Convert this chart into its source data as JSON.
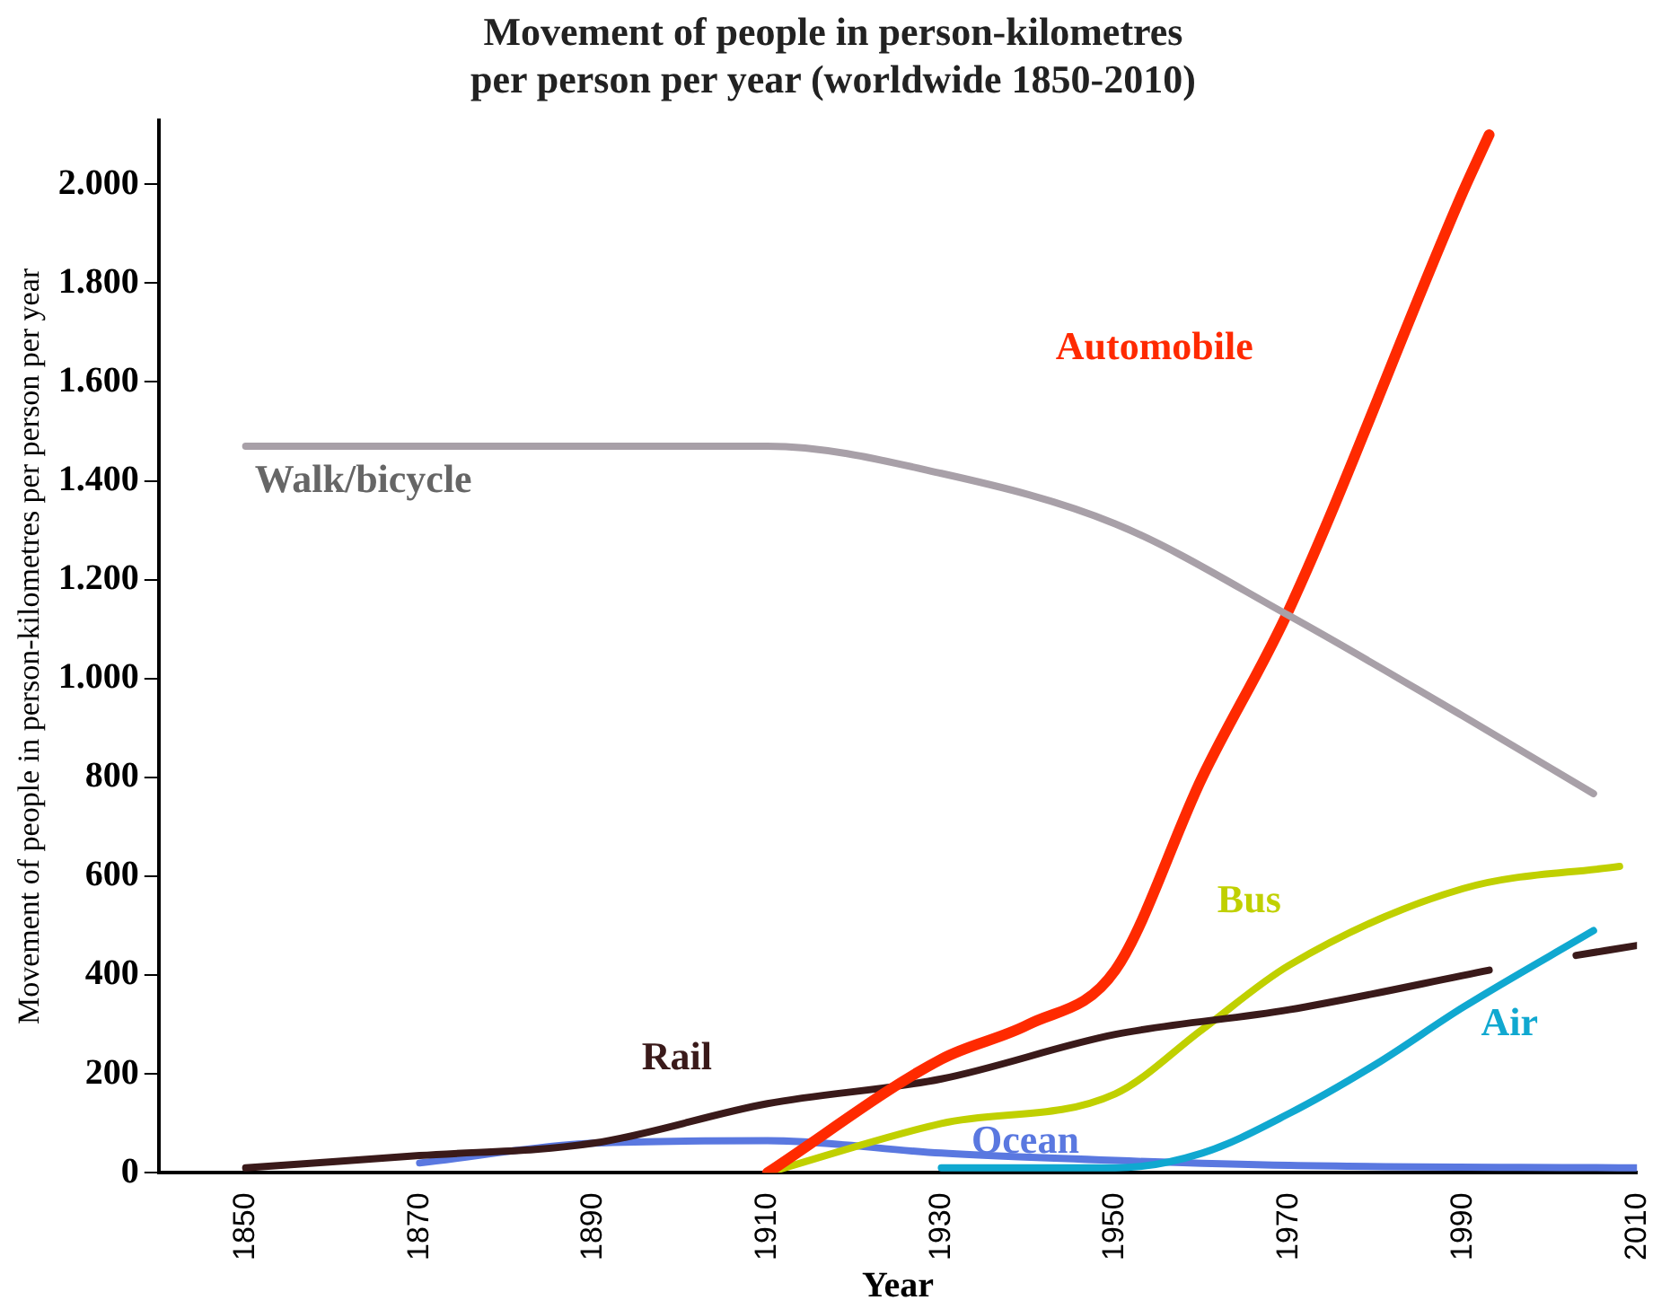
{
  "chart_data": {
    "type": "line",
    "title": "Movement of people in person-kilometres\nper person per year (worldwide 1850-2010)",
    "xlabel": "Year",
    "ylabel": "Movement of people in person-kilometres per person per year",
    "xlim": [
      1840,
      2010
    ],
    "xticks": [
      1850,
      1870,
      1890,
      1910,
      1930,
      1950,
      1970,
      1990,
      2010
    ],
    "ylim": [
      0,
      2130
    ],
    "yticks": [
      0,
      200,
      400,
      600,
      800,
      {
        "value": 1000,
        "label": "1.000"
      },
      {
        "value": 1200,
        "label": "1.200"
      },
      {
        "value": 1400,
        "label": "1.400"
      },
      {
        "value": 1600,
        "label": "1.600"
      },
      {
        "value": 1800,
        "label": "1.800"
      },
      {
        "value": 2000,
        "label": "2.000"
      }
    ],
    "grid": false,
    "legend": false,
    "marker": "none",
    "line_style": "solid",
    "series": [
      {
        "name": "Walk/bicycle",
        "color": "#a8a0a8",
        "x": [
          1850,
          1870,
          1890,
          1910,
          1930,
          1950,
          1970,
          1990,
          2005
        ],
        "values": [
          1470,
          1470,
          1470,
          1470,
          1415,
          1313,
          1127,
          924,
          767
        ]
      },
      {
        "name": "Automobile",
        "color": "#ff2a00",
        "x": [
          1910,
          1930,
          1940,
          1950,
          1960,
          1970,
          1990,
          1993
        ],
        "values": [
          0,
          230,
          300,
          410,
          800,
          1140,
          1985,
          2100
        ]
      },
      {
        "name": "Rail",
        "color": "#3a1a1a",
        "x": [
          1850,
          1870,
          1890,
          1910,
          1930,
          1950,
          1970,
          1993,
          1998,
          2003,
          2010
        ],
        "values": [
          10,
          35,
          60,
          140,
          190,
          280,
          330,
          410,
          null,
          440,
          460
        ]
      },
      {
        "name": "Bus",
        "color": "#c0d000",
        "x": [
          1910,
          1930,
          1950,
          1960,
          1970,
          1990,
          2008
        ],
        "values": [
          0,
          100,
          160,
          290,
          420,
          575,
          620
        ]
      },
      {
        "name": "Air",
        "color": "#10a8d0",
        "x": [
          1930,
          1950,
          1960,
          1970,
          1980,
          1990,
          2005
        ],
        "values": [
          10,
          10,
          40,
          120,
          220,
          335,
          490
        ]
      },
      {
        "name": "Ocean",
        "color": "#5a78e0",
        "x": [
          1870,
          1890,
          1910,
          1930,
          1950,
          1970,
          2010
        ],
        "values": [
          20,
          60,
          65,
          40,
          25,
          15,
          10
        ]
      }
    ]
  }
}
